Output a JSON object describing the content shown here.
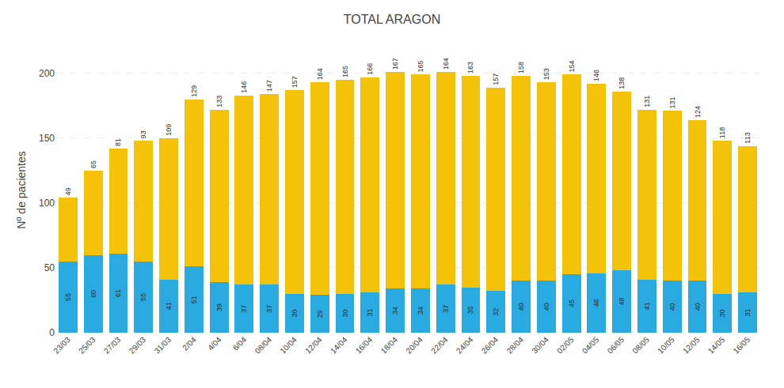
{
  "chart_data": {
    "type": "bar",
    "title": "TOTAL ARAGON",
    "ylabel": "Nº de pacientes",
    "categories": [
      "23/03",
      "25/03",
      "27/03",
      "29/03",
      "31/03",
      "2/04",
      "4/04",
      "6/04",
      "08/04",
      "10/04",
      "12/04",
      "14/04",
      "16/04",
      "18/04",
      "20/04",
      "22/04",
      "24/04",
      "26/04",
      "28/04",
      "30/04",
      "02/05",
      "04/05",
      "06/05",
      "08/05",
      "10/05",
      "12/05",
      "14/05",
      "16/05"
    ],
    "stacked": true,
    "series": [
      {
        "color": "#29ABE2",
        "values": [
          55,
          60,
          61,
          55,
          41,
          51,
          39,
          37,
          37,
          30,
          29,
          30,
          31,
          34,
          34,
          37,
          35,
          32,
          40,
          40,
          45,
          46,
          48,
          41,
          40,
          40,
          30,
          31
        ]
      },
      {
        "color": "#F5C20A",
        "values": [
          49,
          65,
          81,
          93,
          109,
          129,
          133,
          146,
          147,
          157,
          164,
          165,
          166,
          167,
          165,
          164,
          163,
          157,
          158,
          153,
          154,
          146,
          138,
          131,
          131,
          124,
          118,
          113
        ]
      }
    ],
    "ylim": [
      0,
      220
    ],
    "yticks": [
      0,
      50,
      100,
      150,
      200
    ],
    "grid": true,
    "data_labels": true
  }
}
